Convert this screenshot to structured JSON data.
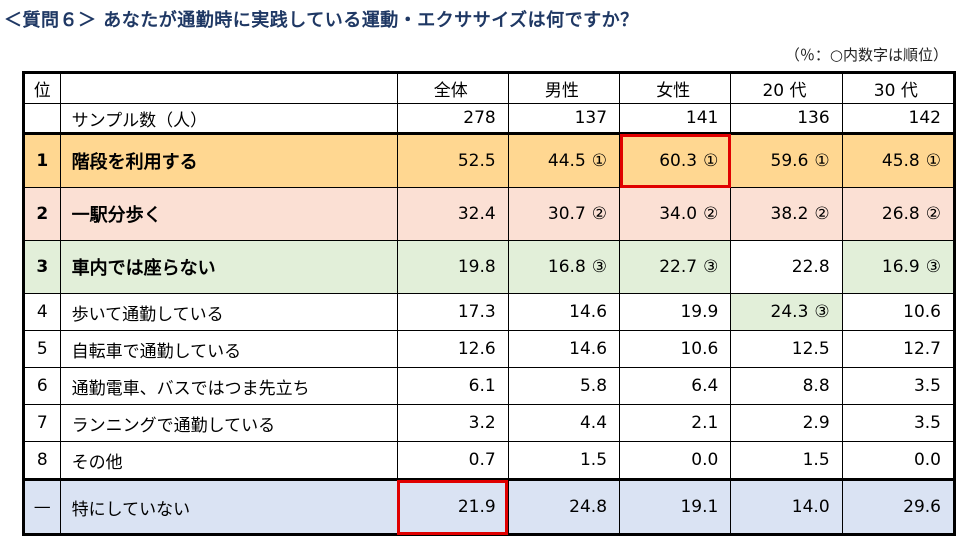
{
  "title": "＜質問６＞ あなたが通勤時に実践している運動・エクササイズは何ですか？",
  "note": "（％：○内数字は順位）",
  "header": {
    "rank": "位",
    "item": "",
    "columns": [
      "全体",
      "男性",
      "女性",
      "20 代",
      "30 代"
    ]
  },
  "sample": {
    "label": "サンプル数（人）",
    "values": [
      "278",
      "137",
      "141",
      "136",
      "142"
    ]
  },
  "rows": [
    {
      "rank": "1",
      "label": "階段を利用する",
      "values": [
        "52.5",
        "44.5",
        "60.3",
        "59.6",
        "45.8"
      ],
      "ranks": [
        "",
        "①",
        "①",
        "①",
        "①"
      ]
    },
    {
      "rank": "2",
      "label": "一駅分歩く",
      "values": [
        "32.4",
        "30.7",
        "34.0",
        "38.2",
        "26.8"
      ],
      "ranks": [
        "",
        "②",
        "②",
        "②",
        "②"
      ]
    },
    {
      "rank": "3",
      "label": "車内では座らない",
      "values": [
        "19.8",
        "16.8",
        "22.7",
        "22.8",
        "16.9"
      ],
      "ranks": [
        "",
        "③",
        "③",
        "",
        "③"
      ]
    },
    {
      "rank": "4",
      "label": "歩いて通勤している",
      "values": [
        "17.3",
        "14.6",
        "19.9",
        "24.3",
        "10.6"
      ],
      "ranks": [
        "",
        "",
        "",
        "③",
        ""
      ]
    },
    {
      "rank": "5",
      "label": "自転車で通勤している",
      "values": [
        "12.6",
        "14.6",
        "10.6",
        "12.5",
        "12.7"
      ],
      "ranks": [
        "",
        "",
        "",
        "",
        ""
      ]
    },
    {
      "rank": "6",
      "label": "通勤電車、バスではつま先立ち",
      "values": [
        "6.1",
        "5.8",
        "6.4",
        "8.8",
        "3.5"
      ],
      "ranks": [
        "",
        "",
        "",
        "",
        ""
      ]
    },
    {
      "rank": "7",
      "label": "ランニングで通勤している",
      "values": [
        "3.2",
        "4.4",
        "2.1",
        "2.9",
        "3.5"
      ],
      "ranks": [
        "",
        "",
        "",
        "",
        ""
      ]
    },
    {
      "rank": "8",
      "label": "その他",
      "values": [
        "0.7",
        "1.5",
        "0.0",
        "1.5",
        "0.0"
      ],
      "ranks": [
        "",
        "",
        "",
        "",
        ""
      ]
    },
    {
      "rank": "—",
      "label": "特にしていない",
      "values": [
        "21.9",
        "24.8",
        "19.1",
        "14.0",
        "29.6"
      ],
      "ranks": [
        "",
        "",
        "",
        "",
        ""
      ]
    }
  ],
  "colors": {
    "rank1": "#ffd791",
    "rank2": "#fbe0d4",
    "rank3": "#e2efd9",
    "none": "#dae3f3",
    "highlight_border": "#e00000",
    "title": "#1f3864"
  }
}
